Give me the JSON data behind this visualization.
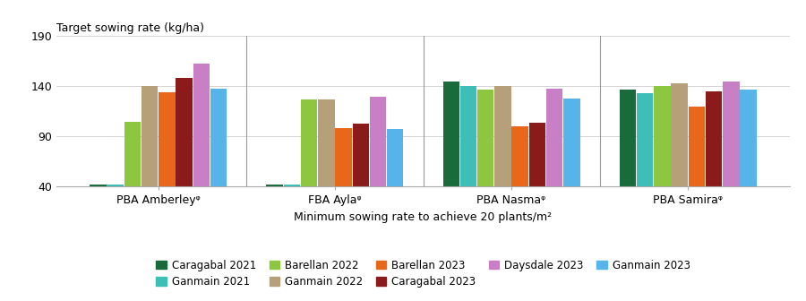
{
  "title": "Target sowing rate (kg/ha)",
  "xlabel": "Minimum sowing rate to achieve 20 plants/m²",
  "ylim": [
    40,
    190
  ],
  "yticks": [
    40,
    90,
    140,
    190
  ],
  "varieties": [
    "PBA Amberleyᵠ",
    "FBA Aylaᵠ",
    "PBA Nasmaᵠ",
    "PBA Samiraᵠ"
  ],
  "series": [
    {
      "label": "Caragabal 2021",
      "color": "#1a6b3c",
      "values": [
        42,
        42,
        145,
        137
      ]
    },
    {
      "label": "Ganmain 2021",
      "color": "#3dbfb8",
      "values": [
        42,
        42,
        140,
        133
      ]
    },
    {
      "label": "Barellan 2022",
      "color": "#8dc63f",
      "values": [
        105,
        127,
        137,
        140
      ]
    },
    {
      "label": "Ganmain 2022",
      "color": "#b5a07a",
      "values": [
        140,
        127,
        140,
        143
      ]
    },
    {
      "label": "Barellan 2023",
      "color": "#e8671a",
      "values": [
        134,
        98,
        100,
        120
      ]
    },
    {
      "label": "Caragabal 2023",
      "color": "#8b1a1a",
      "values": [
        148,
        103,
        104,
        135
      ]
    },
    {
      "label": "Daysdale 2023",
      "color": "#c97fc5",
      "values": [
        163,
        130,
        138,
        145
      ]
    },
    {
      "label": "Ganmain 2023",
      "color": "#56b4e9",
      "values": [
        138,
        97,
        128,
        137
      ]
    }
  ],
  "background_color": "#ffffff"
}
